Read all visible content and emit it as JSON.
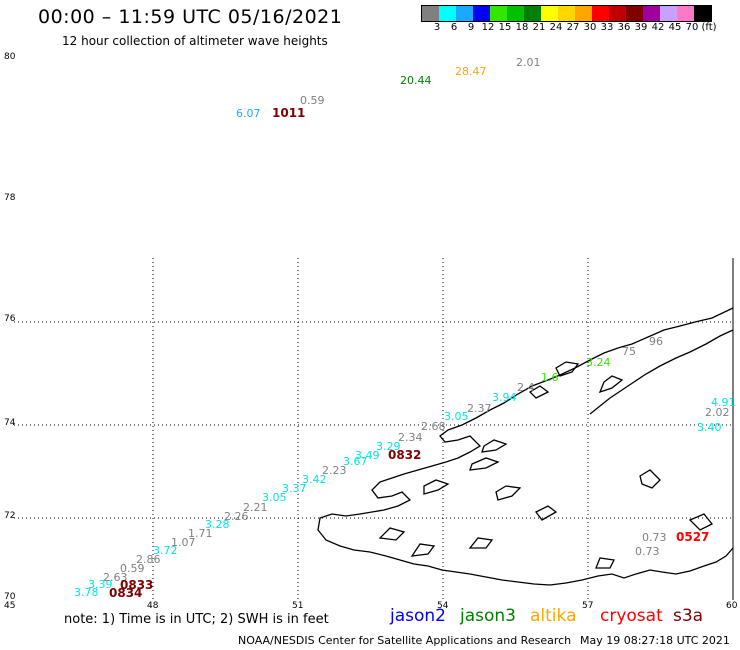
{
  "title": "00:00 – 11:59 UTC 05/16/2021",
  "subtitle": "12 hour collection of altimeter wave heights",
  "colorbar": {
    "colors": [
      "#808080",
      "#00ffff",
      "#1aa9ff",
      "#0000ff",
      "#33e600",
      "#00c000",
      "#008000",
      "#ffff00",
      "#ffd700",
      "#ffa500",
      "#ff0000",
      "#c00000",
      "#800000",
      "#a000a0",
      "#c8a0ff",
      "#ff78c8",
      "#000000"
    ],
    "labels": [
      "3",
      "6",
      "9",
      "12",
      "15",
      "18",
      "21",
      "24",
      "27",
      "30",
      "33",
      "36",
      "39",
      "42",
      "45",
      "70",
      "(ft)"
    ]
  },
  "lat_labels": [
    "80",
    "78",
    "76",
    "74",
    "72",
    "70"
  ],
  "lon_labels": [
    "45",
    "48",
    "51",
    "54",
    "57",
    "60"
  ],
  "wave_labels": [
    {
      "t": "20.44",
      "c": "#008000"
    },
    {
      "t": "28.47",
      "c": "#ffa500"
    },
    {
      "t": "2.01",
      "c": "#808080"
    },
    {
      "t": "0.59",
      "c": "#808080"
    },
    {
      "t": "6.07",
      "c": "#1aa9ff"
    },
    {
      "t": "3.78",
      "c": "#00e5e5"
    },
    {
      "t": "3.39",
      "c": "#00e5e5"
    },
    {
      "t": "2.63",
      "c": "#808080"
    },
    {
      "t": "0.59",
      "c": "#808080"
    },
    {
      "t": "2.86",
      "c": "#808080"
    },
    {
      "t": "3.72",
      "c": "#00e5e5"
    },
    {
      "t": "1.07",
      "c": "#808080"
    },
    {
      "t": "1.71",
      "c": "#808080"
    },
    {
      "t": "3.28",
      "c": "#00e5e5"
    },
    {
      "t": "2.26",
      "c": "#808080"
    },
    {
      "t": "2.21",
      "c": "#808080"
    },
    {
      "t": "3.05",
      "c": "#00e5e5"
    },
    {
      "t": "3.37",
      "c": "#00e5e5"
    },
    {
      "t": "3.42",
      "c": "#00e5e5"
    },
    {
      "t": "2.23",
      "c": "#808080"
    },
    {
      "t": "3.67",
      "c": "#00e5e5"
    },
    {
      "t": "3.49",
      "c": "#00e5e5"
    },
    {
      "t": "3.29",
      "c": "#00e5e5"
    },
    {
      "t": "2.34",
      "c": "#808080"
    },
    {
      "t": "2.68",
      "c": "#808080"
    },
    {
      "t": "3.05",
      "c": "#00e5e5"
    },
    {
      "t": "2.37",
      "c": "#808080"
    },
    {
      "t": "3.94",
      "c": "#00e5e5"
    },
    {
      "t": "2.4",
      "c": "#808080"
    },
    {
      "t": "1.6",
      "c": "#33e600"
    },
    {
      "t": "3.24",
      "c": "#33e600"
    },
    {
      "t": "75",
      "c": "#808080"
    },
    {
      "t": "96",
      "c": "#808080"
    },
    {
      "t": "4.91",
      "c": "#00e5e5"
    },
    {
      "t": "2.02",
      "c": "#808080"
    },
    {
      "t": "3.40",
      "c": "#00e5e5"
    },
    {
      "t": "0.73",
      "c": "#808080"
    },
    {
      "t": "0.73",
      "c": "#808080"
    }
  ],
  "time_labels": [
    {
      "t": "1011",
      "c": "#800000"
    },
    {
      "t": "0832",
      "c": "#800000"
    },
    {
      "t": "0833",
      "c": "#800000"
    },
    {
      "t": "0834",
      "c": "#800000"
    },
    {
      "t": "0527",
      "c": "#ff0000"
    }
  ],
  "legend": {
    "note": "note: 1) Time is in UTC; 2) SWH is in feet",
    "satellites": [
      {
        "name": "jason2",
        "color": "#0000ff"
      },
      {
        "name": "jason3",
        "color": "#008000"
      },
      {
        "name": "altika",
        "color": "#ffa500"
      },
      {
        "name": "cryosat",
        "color": "#ff0000"
      },
      {
        "name": "s3a",
        "color": "#800000"
      }
    ]
  },
  "credit": "NOAA/NESDIS Center for Satellite Applications and Research",
  "timestamp": "May 19 08:27:18 UTC 2021"
}
